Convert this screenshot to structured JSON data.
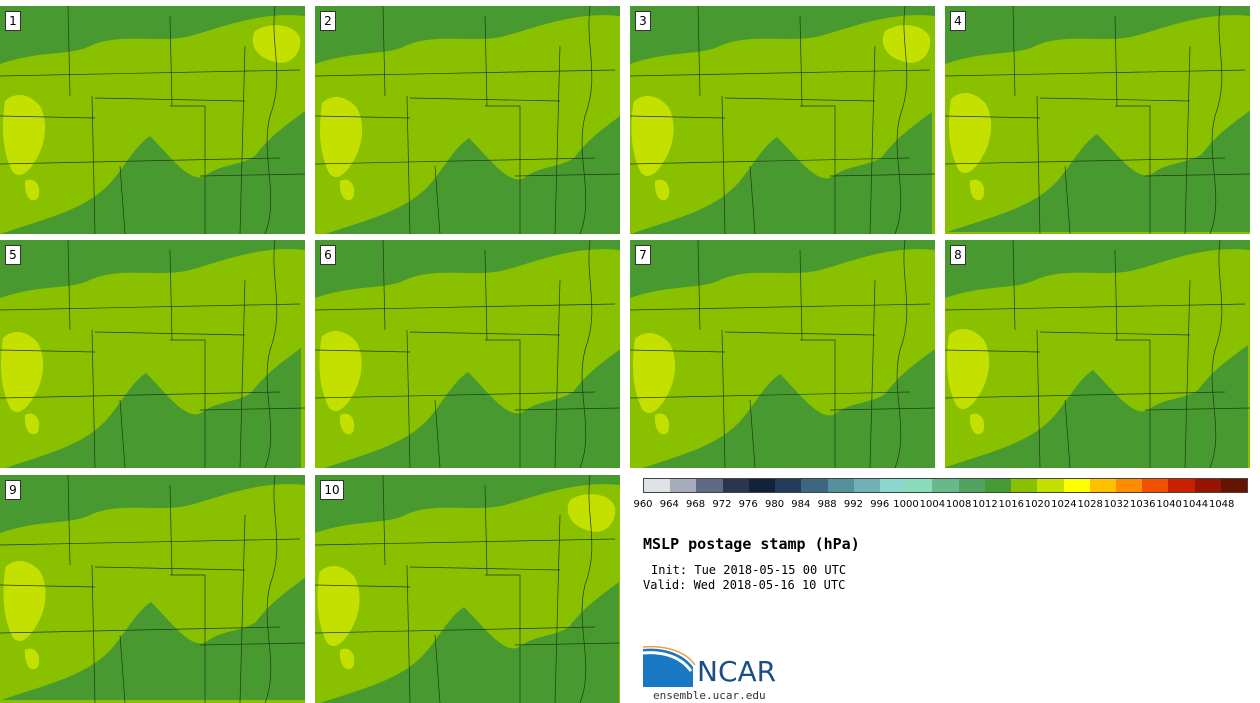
{
  "title": "MSLP postage stamp (hPa)",
  "init": "Init: Tue 2018-05-15 00 UTC",
  "valid": "Valid: Wed 2018-05-16 10 UTC",
  "logo": {
    "text": "NCAR",
    "icon": "ncar-swoosh-icon"
  },
  "website": "ensemble.ucar.edu",
  "members": [
    "1",
    "2",
    "3",
    "4",
    "5",
    "6",
    "7",
    "8",
    "9",
    "10"
  ],
  "colorbar": {
    "ticks": [
      "960",
      "964",
      "968",
      "972",
      "976",
      "980",
      "984",
      "988",
      "992",
      "996",
      "1000",
      "1004",
      "1008",
      "1012",
      "1016",
      "1020",
      "1024",
      "1028",
      "1032",
      "1036",
      "1040",
      "1044",
      "1048"
    ],
    "colors": [
      "#dfe3e8",
      "#a7acba",
      "#5f6a86",
      "#2a3650",
      "#13223b",
      "#233c5c",
      "#3e6680",
      "#56909d",
      "#6fb1b4",
      "#8ad8cc",
      "#89dcb9",
      "#66b98a",
      "#4fa35f",
      "#459a32",
      "#89c000",
      "#c4e000",
      "#ffff00",
      "#ffc000",
      "#ff8c00",
      "#f05000",
      "#c82000",
      "#961400",
      "#641400"
    ]
  },
  "colors": {
    "dark_green": "#489a30",
    "light_green": "#89c000",
    "yellow_green": "#c4e000",
    "border": "#1d3d10"
  }
}
